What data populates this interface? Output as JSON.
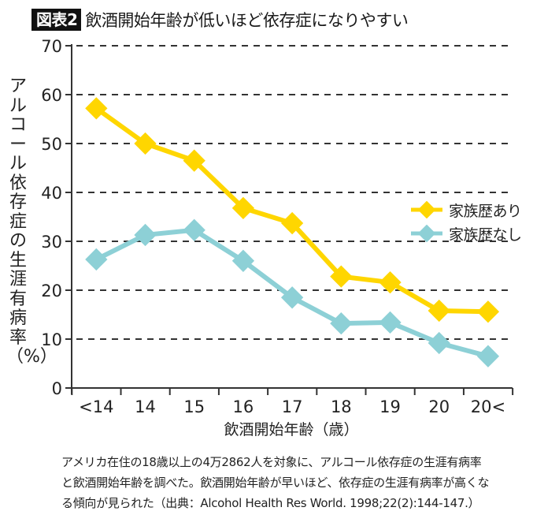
{
  "figure": {
    "badge": "図表2",
    "title": "飲酒開始年齢が低いほど依存症になりやすい"
  },
  "chart_data": {
    "type": "line",
    "title": "飲酒開始年齢が低いほど依存症になりやすい",
    "xlabel": "飲酒開始年齢（歳）",
    "ylabel": "アルコール依存症の生涯有病率（%）",
    "categories": [
      "<14",
      "14",
      "15",
      "16",
      "17",
      "18",
      "19",
      "20",
      "20<"
    ],
    "ylim": [
      0,
      70
    ],
    "yticks": [
      0,
      10,
      20,
      30,
      40,
      50,
      60,
      70
    ],
    "grid": "horizontal-dashed",
    "legend_position": "right-middle",
    "series": [
      {
        "name": "家族歴あり",
        "color": "#FFD600",
        "marker": "diamond",
        "values": [
          57.2,
          50.0,
          46.5,
          36.8,
          33.7,
          22.8,
          21.6,
          15.8,
          15.6
        ]
      },
      {
        "name": "家族歴なし",
        "color": "#8DD0D6",
        "marker": "diamond",
        "values": [
          26.3,
          31.3,
          32.3,
          26.0,
          18.5,
          13.2,
          13.4,
          9.2,
          6.5
        ]
      }
    ]
  },
  "caption": {
    "lines": [
      "アメリカ在住の18歳以上の4万2862人を対象に、アルコール依存症の生涯有病率",
      "と飲酒開始年齢を調べた。飲酒開始年齢が早いほど、依存症の生涯有病率が高くな",
      "る傾向が見られた（出典：Alcohol Health Res World. 1998;22(2):144-147.）"
    ]
  }
}
